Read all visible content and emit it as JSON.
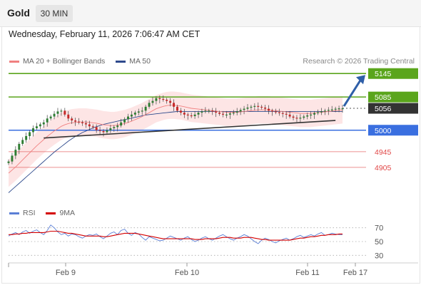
{
  "header": {
    "asset": "Gold",
    "timeframe": "30 MIN"
  },
  "timestamp": "Wednesday, February 11, 2026 7:06:47 AM CET",
  "legend": {
    "ma20": "MA 20 + Bollinger Bands",
    "ma50": "MA 50",
    "ma20_color": "#f08080",
    "ma50_color": "#2e4a8c"
  },
  "credit": "Research © 2026 Trading Central",
  "rsi_legend": {
    "rsi": "RSI",
    "ma9": "9MA",
    "rsi_color": "#5b7fd6",
    "ma9_color": "#d40000"
  },
  "colors": {
    "green": "#5aa51c",
    "blue": "#3a6fe0",
    "red": "#e04848",
    "dark": "#333333",
    "up_candle": "#2e7d32",
    "down_candle": "#c62828",
    "band": "#fde2e2"
  },
  "chart_data": [
    {
      "type": "candlestick",
      "ylim": [
        4830,
        5160
      ],
      "x_ticks": [
        "Feb 9",
        "Feb 10",
        "Feb 11",
        "Feb 17"
      ],
      "levels": [
        {
          "value": 5145,
          "label": "5145",
          "style": "green-line-tag"
        },
        {
          "value": 5085,
          "label": "5085",
          "style": "green-line-tag"
        },
        {
          "value": 5056,
          "label": "5056",
          "style": "last-price-tag"
        },
        {
          "value": 5000,
          "label": "5000",
          "style": "blue-line-tag"
        },
        {
          "value": 4945,
          "label": "4945",
          "style": "red-line-text"
        },
        {
          "value": 4905,
          "label": "4905",
          "style": "red-line-text"
        }
      ],
      "close_series": [
        4920,
        4935,
        4950,
        4965,
        4975,
        4985,
        4995,
        5005,
        5010,
        5015,
        5020,
        5030,
        5035,
        5042,
        5048,
        5050,
        5040,
        5030,
        5025,
        5022,
        5020,
        5018,
        5015,
        5010,
        5008,
        5000,
        4998,
        4995,
        5000,
        5005,
        5008,
        5012,
        5020,
        5028,
        5035,
        5040,
        5045,
        5048,
        5050,
        5060,
        5070,
        5075,
        5082,
        5080,
        5078,
        5075,
        5070,
        5060,
        5050,
        5045,
        5040,
        5038,
        5036,
        5040,
        5045,
        5048,
        5050,
        5050,
        5048,
        5045,
        5042,
        5040,
        5040,
        5043,
        5045,
        5048,
        5052,
        5055,
        5058,
        5060,
        5062,
        5060,
        5058,
        5055,
        5050,
        5048,
        5046,
        5044,
        5042,
        5040,
        5035,
        5032,
        5030,
        5032,
        5035,
        5038,
        5040,
        5044,
        5046,
        5048,
        5050,
        5052,
        5053,
        5055,
        5056,
        5056
      ],
      "ma20": [
        4890,
        4898,
        4906,
        4915,
        4924,
        4933,
        4942,
        4951,
        4960,
        4968,
        4976,
        4984,
        4991,
        4998,
        5004,
        5010,
        5014,
        5017,
        5019,
        5020,
        5021,
        5021,
        5021,
        5020,
        5019,
        5018,
        5016,
        5014,
        5013,
        5012,
        5012,
        5013,
        5015,
        5017,
        5020,
        5023,
        5027,
        5031,
        5035,
        5040,
        5045,
        5050,
        5055,
        5058,
        5061,
        5063,
        5064,
        5064,
        5063,
        5062,
        5060,
        5058,
        5056,
        5055,
        5054,
        5053,
        5052,
        5051,
        5050,
        5049,
        5048,
        5047,
        5046,
        5046,
        5046,
        5046,
        5047,
        5048,
        5049,
        5050,
        5051,
        5052,
        5052,
        5052,
        5052,
        5051,
        5050,
        5049,
        5048,
        5047,
        5046,
        5045,
        5044,
        5043,
        5043,
        5043,
        5043,
        5044,
        5045,
        5046,
        5047,
        5048,
        5049,
        5050,
        5051,
        5052
      ],
      "ma50": [
        4840,
        4848,
        4856,
        4864,
        4872,
        4880,
        4888,
        4896,
        4904,
        4912,
        4920,
        4928,
        4936,
        4944,
        4951,
        4958,
        4965,
        4972,
        4978,
        4984,
        4989,
        4994,
        4998,
        5002,
        5006,
        5009,
        5012,
        5015,
        5017,
        5019,
        5021,
        5023,
        5025,
        5027,
        5029,
        5031,
        5033,
        5035,
        5037,
        5039,
        5040,
        5041,
        5042,
        5043,
        5044,
        5045,
        5046,
        5047,
        5048,
        5048,
        5048,
        5048,
        5048,
        5048,
        5048,
        5048,
        5048,
        5048,
        5048,
        5048,
        5048,
        5048,
        5048,
        5048,
        5048,
        5048,
        5048,
        5048,
        5048,
        5048,
        5048,
        5048,
        5048,
        5048,
        5048,
        5048,
        5048,
        5048,
        5048,
        5048,
        5048,
        5048,
        5048,
        5048,
        5048,
        5048,
        5048,
        5048,
        5048,
        5048,
        5048,
        5048,
        5048,
        5048,
        5048,
        5048
      ],
      "bollinger_width": 35,
      "trendline_start": 4980,
      "trendline_end": 5025,
      "projection_target": 5145
    },
    {
      "type": "line",
      "title": "RSI",
      "ylim": [
        20,
        80
      ],
      "y_ticks": [
        70,
        50,
        30
      ],
      "series": [
        {
          "name": "RSI",
          "values": [
            58,
            61,
            63,
            60,
            64,
            66,
            62,
            65,
            67,
            63,
            60,
            66,
            74,
            70,
            64,
            60,
            62,
            58,
            61,
            60,
            57,
            55,
            58,
            60,
            59,
            61,
            57,
            54,
            58,
            62,
            64,
            60,
            66,
            68,
            62,
            59,
            63,
            61,
            56,
            52,
            57,
            55,
            53,
            51,
            52,
            55,
            58,
            56,
            54,
            52,
            55,
            57,
            53,
            50,
            52,
            55,
            57,
            54,
            52,
            55,
            58,
            60,
            57,
            54,
            52,
            55,
            57,
            60,
            58,
            54,
            50,
            47,
            52,
            55,
            53,
            50,
            48,
            51,
            53,
            55,
            52,
            54,
            57,
            59,
            56,
            58,
            60,
            58,
            61,
            63,
            59,
            60,
            62,
            61,
            60,
            60
          ]
        },
        {
          "name": "9MA",
          "values": [
            60,
            60,
            61,
            61,
            62,
            62,
            63,
            63,
            63,
            63,
            63,
            64,
            65,
            65,
            65,
            64,
            63,
            62,
            62,
            61,
            60,
            59,
            58,
            58,
            58,
            58,
            58,
            57,
            57,
            58,
            59,
            60,
            61,
            62,
            62,
            62,
            62,
            61,
            60,
            59,
            58,
            57,
            56,
            55,
            54,
            54,
            54,
            54,
            54,
            54,
            54,
            54,
            54,
            53,
            53,
            53,
            54,
            54,
            54,
            54,
            55,
            56,
            56,
            56,
            55,
            55,
            55,
            56,
            56,
            56,
            55,
            54,
            53,
            53,
            52,
            52,
            52,
            52,
            52,
            52,
            52,
            53,
            54,
            55,
            55,
            56,
            57,
            57,
            58,
            59,
            59,
            60,
            60,
            60,
            61,
            61
          ]
        }
      ]
    }
  ]
}
